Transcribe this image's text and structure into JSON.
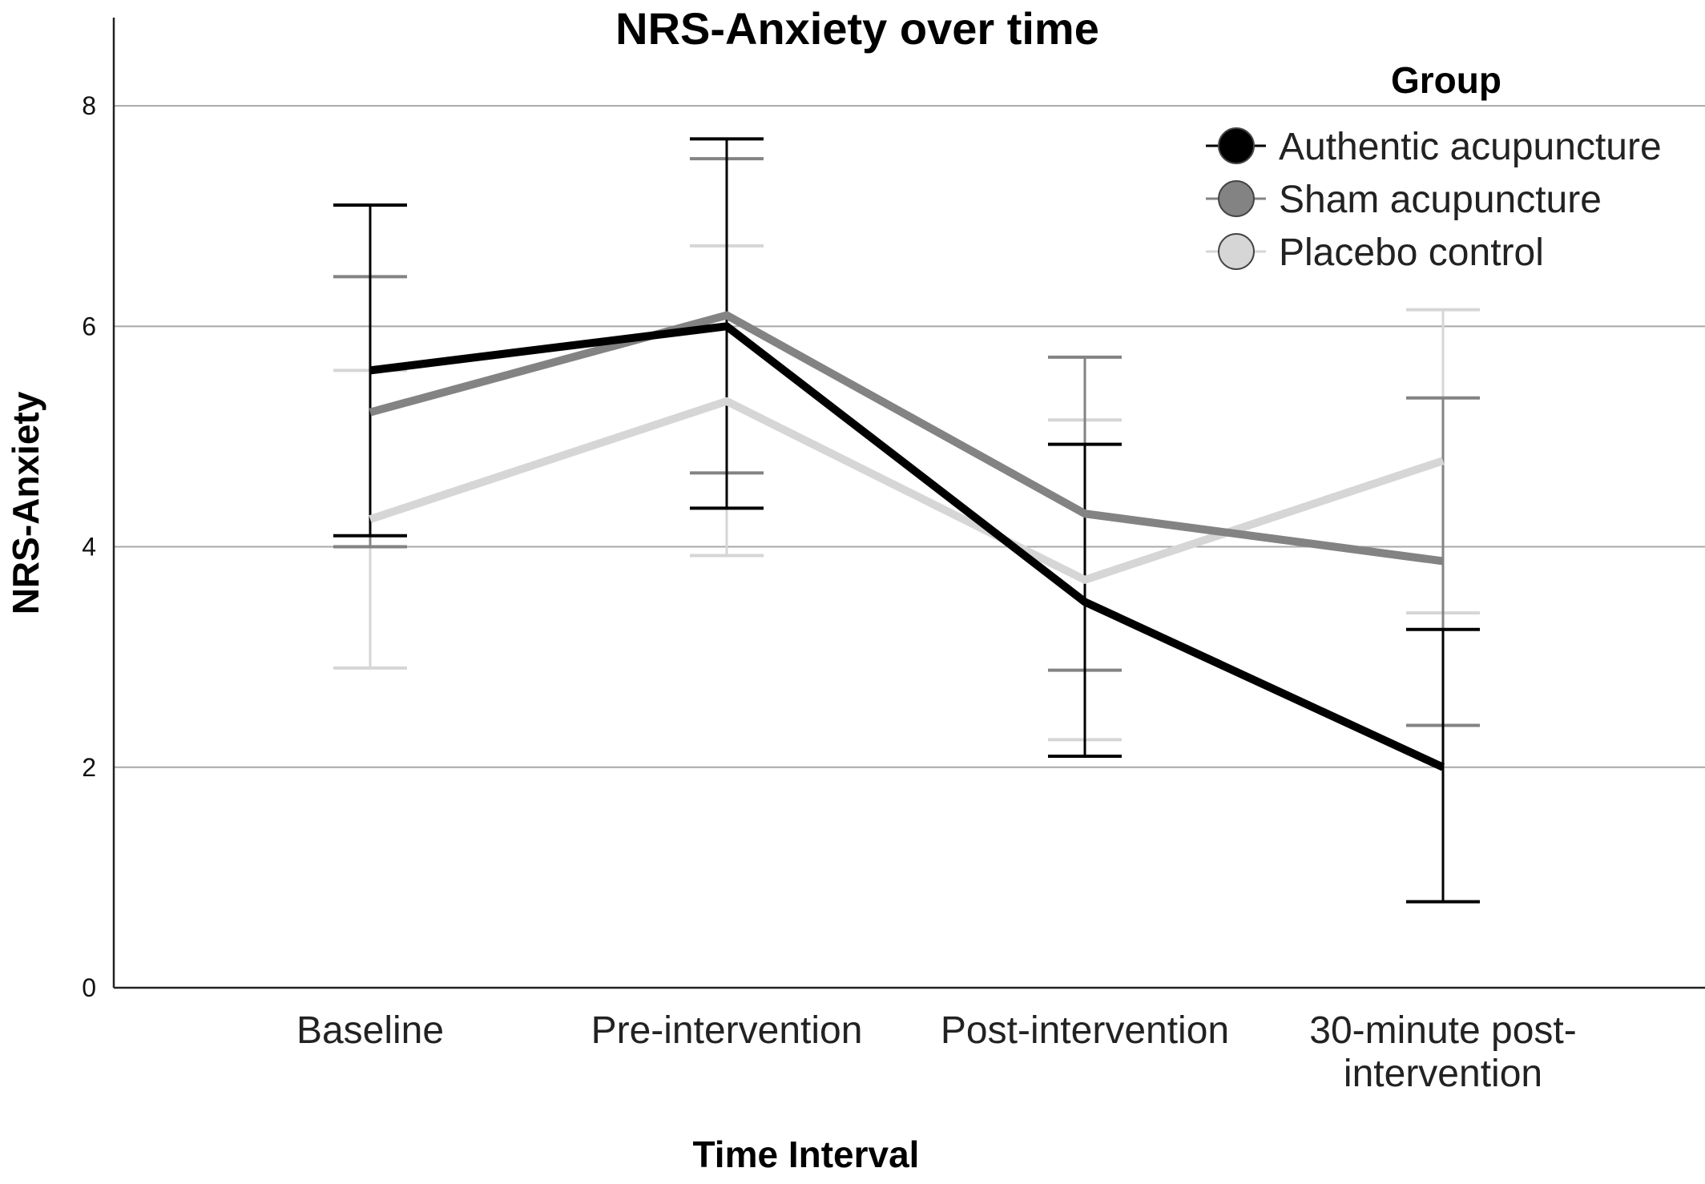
{
  "chart_data": {
    "type": "line",
    "title": "NRS-Anxiety over time",
    "xlabel": "Time Interval",
    "ylabel": "NRS-Anxiety",
    "ylim": [
      0,
      8.8
    ],
    "yticks": [
      0,
      2,
      4,
      6,
      8
    ],
    "grid": true,
    "categories": [
      [
        "Baseline"
      ],
      [
        "Pre-intervention"
      ],
      [
        "Post-intervention"
      ],
      [
        "30-minute post-",
        "intervention"
      ]
    ],
    "legend": {
      "title": "Group",
      "placement": "top-right"
    },
    "series": [
      {
        "name": "Authentic acupuncture",
        "color": "#000000",
        "values": [
          5.6,
          6.0,
          3.5,
          2.0
        ],
        "error_low": [
          4.1,
          4.35,
          2.1,
          0.78
        ],
        "error_high": [
          7.1,
          7.7,
          4.93,
          3.25
        ]
      },
      {
        "name": "Sham acupuncture",
        "color": "#838383",
        "values": [
          5.22,
          6.1,
          4.3,
          3.87
        ],
        "error_low": [
          4.0,
          4.67,
          2.88,
          2.38
        ],
        "error_high": [
          6.45,
          7.52,
          5.72,
          5.35
        ]
      },
      {
        "name": "Placebo control",
        "color": "#d6d6d6",
        "values": [
          4.25,
          5.32,
          3.7,
          4.78
        ],
        "error_low": [
          2.9,
          3.92,
          2.25,
          3.4
        ],
        "error_high": [
          5.6,
          6.73,
          5.15,
          6.15
        ]
      }
    ]
  }
}
